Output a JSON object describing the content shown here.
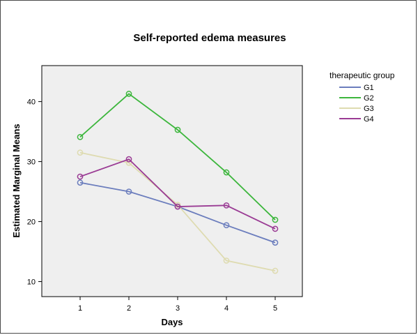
{
  "chart_data": {
    "type": "line",
    "title": "Self-reported edema measures",
    "xlabel": "Days",
    "ylabel": "Estimated Marginal Means",
    "categories": [
      "1",
      "2",
      "3",
      "4",
      "5"
    ],
    "ylim": [
      7.5,
      46
    ],
    "yticks": [
      10,
      20,
      30,
      40
    ],
    "grid": false,
    "legend": {
      "title": "therapeutic group",
      "placement": "right"
    },
    "plot_background": "#efefef",
    "series": [
      {
        "name": "G1",
        "color": "#6b7dbd",
        "values": [
          26.5,
          25.0,
          22.5,
          19.4,
          16.5
        ]
      },
      {
        "name": "G2",
        "color": "#3cb63c",
        "values": [
          34.1,
          41.3,
          35.3,
          28.2,
          20.3
        ]
      },
      {
        "name": "G3",
        "color": "#dedbb0",
        "values": [
          31.5,
          29.8,
          22.8,
          13.5,
          11.8
        ]
      },
      {
        "name": "G4",
        "color": "#9a3b94",
        "values": [
          27.5,
          30.4,
          22.5,
          22.7,
          18.8
        ]
      }
    ]
  }
}
